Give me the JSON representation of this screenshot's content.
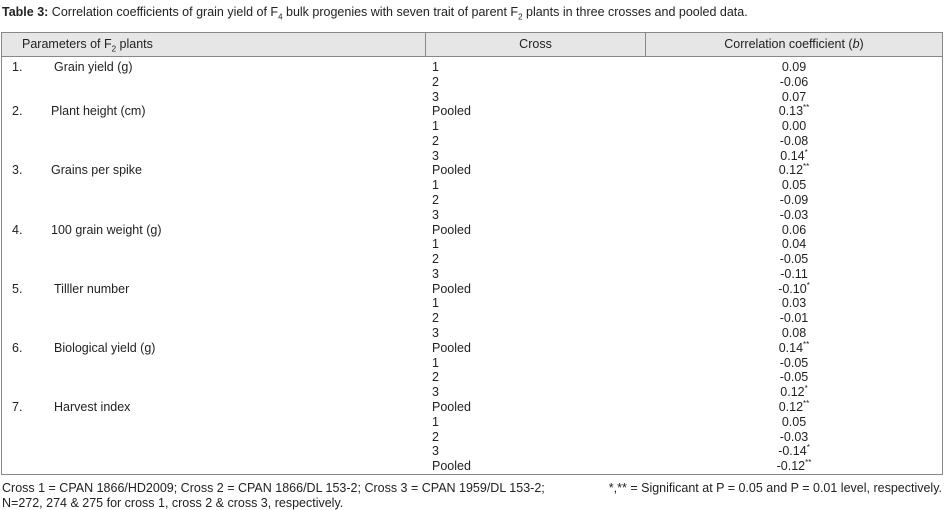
{
  "caption": {
    "label": "Table 3:",
    "text_1": " Correlation coefficients of grain yield of F",
    "sub_1": "4",
    "text_2": " bulk progenies with seven trait of parent F",
    "sub_2": "2",
    "text_3": " plants in three crosses and pooled data."
  },
  "table": {
    "header": {
      "parameters": {
        "text_1": "Parameters of F",
        "sub": "2",
        "text_2": " plants"
      },
      "cross": "Cross",
      "coefficient": {
        "text_1": "Correlation coefficient (",
        "italic": "b",
        "text_2": ")"
      }
    },
    "parameters": [
      {
        "number": "1.",
        "name": "Grain yield (g)"
      },
      {
        "number": "2.",
        "name": "Plant height (cm)"
      },
      {
        "number": "3.",
        "name": "Grains per spike"
      },
      {
        "number": "4.",
        "name": "100 grain weight (g)"
      },
      {
        "number": "5.",
        "name": "Tilller number"
      },
      {
        "number": "6.",
        "name": "Biological yield (g)"
      },
      {
        "number": "7.",
        "name": "Harvest index"
      }
    ],
    "rows": [
      {
        "cross": "1",
        "coef": "0.09"
      },
      {
        "cross": "2",
        "coef": "-0.06"
      },
      {
        "cross": "3",
        "coef": "0.07"
      },
      {
        "cross": "Pooled",
        "coef": "0.13",
        "sig": "**"
      },
      {
        "cross": "1",
        "coef": "0.00"
      },
      {
        "cross": "2",
        "coef": "-0.08"
      },
      {
        "cross": "3",
        "coef": "0.14",
        "sig": "*"
      },
      {
        "cross": "Pooled",
        "coef": "0.12",
        "sig": "**"
      },
      {
        "cross": "1",
        "coef": "0.05"
      },
      {
        "cross": "2",
        "coef": "-0.09"
      },
      {
        "cross": "3",
        "coef": "-0.03"
      },
      {
        "cross": "Pooled",
        "coef": "0.06"
      },
      {
        "cross": "1",
        "coef": "0.04"
      },
      {
        "cross": "2",
        "coef": "-0.05"
      },
      {
        "cross": "3",
        "coef": "-0.11"
      },
      {
        "cross": "Pooled",
        "coef": "-0.10",
        "sig": "*"
      },
      {
        "cross": "1",
        "coef": "0.03"
      },
      {
        "cross": "2",
        "coef": "-0.01"
      },
      {
        "cross": "3",
        "coef": "0.08"
      },
      {
        "cross": "Pooled",
        "coef": "0.14",
        "sig": "**"
      },
      {
        "cross": "1",
        "coef": "-0.05"
      },
      {
        "cross": "2",
        "coef": "-0.05"
      },
      {
        "cross": "3",
        "coef": "0.12",
        "sig": "*"
      },
      {
        "cross": "Pooled",
        "coef": "0.12",
        "sig": "**"
      },
      {
        "cross": "1",
        "coef": "0.05"
      },
      {
        "cross": "2",
        "coef": "-0.03"
      },
      {
        "cross": "3",
        "coef": "-0.14",
        "sig": "*"
      },
      {
        "cross": "Pooled",
        "coef": "-0.12",
        "sig": "**"
      }
    ]
  },
  "footnotes": {
    "line_1": "Cross 1 = CPAN 1866/HD2009; Cross 2 = CPAN 1866/DL 153-2; Cross 3 = CPAN 1959/DL 153-2;",
    "line_2": "N=272, 274 & 275 for cross 1, cross 2 & cross 3, respectively.",
    "significance": "*,** = Significant at P = 0.05 and P = 0.01 level, respectively."
  }
}
